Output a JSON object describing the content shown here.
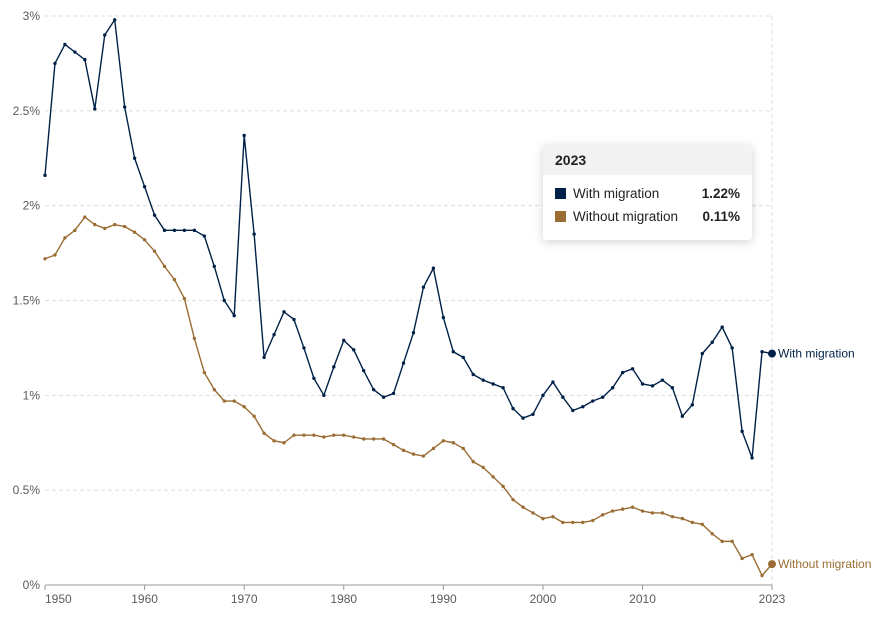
{
  "chart_data": {
    "type": "line",
    "x": [
      1950,
      1951,
      1952,
      1953,
      1954,
      1955,
      1956,
      1957,
      1958,
      1959,
      1960,
      1961,
      1962,
      1963,
      1964,
      1965,
      1966,
      1967,
      1968,
      1969,
      1970,
      1971,
      1972,
      1973,
      1974,
      1975,
      1976,
      1977,
      1978,
      1979,
      1980,
      1981,
      1982,
      1983,
      1984,
      1985,
      1986,
      1987,
      1988,
      1989,
      1990,
      1991,
      1992,
      1993,
      1994,
      1995,
      1996,
      1997,
      1998,
      1999,
      2000,
      2001,
      2002,
      2003,
      2004,
      2005,
      2006,
      2007,
      2008,
      2009,
      2010,
      2011,
      2012,
      2013,
      2014,
      2015,
      2016,
      2017,
      2018,
      2019,
      2020,
      2021,
      2022,
      2023
    ],
    "series": [
      {
        "name": "With migration",
        "color": "#002147",
        "values": [
          2.16,
          2.75,
          2.85,
          2.81,
          2.77,
          2.51,
          2.9,
          2.98,
          2.52,
          2.25,
          2.1,
          1.95,
          1.87,
          1.87,
          1.87,
          1.87,
          1.84,
          1.68,
          1.5,
          1.42,
          2.37,
          1.85,
          1.2,
          1.32,
          1.44,
          1.4,
          1.25,
          1.09,
          1.0,
          1.15,
          1.29,
          1.24,
          1.13,
          1.03,
          0.99,
          1.01,
          1.17,
          1.33,
          1.57,
          1.67,
          1.41,
          1.23,
          1.2,
          1.11,
          1.08,
          1.06,
          1.04,
          0.93,
          0.88,
          0.9,
          1.0,
          1.07,
          0.99,
          0.92,
          0.94,
          0.97,
          0.99,
          1.04,
          1.12,
          1.14,
          1.06,
          1.05,
          1.08,
          1.04,
          0.89,
          0.95,
          1.22,
          1.28,
          1.36,
          1.25,
          0.81,
          0.67,
          1.23,
          1.22
        ]
      },
      {
        "name": "Without migration",
        "color": "#9a6d34",
        "values": [
          1.72,
          1.74,
          1.83,
          1.87,
          1.94,
          1.9,
          1.88,
          1.9,
          1.89,
          1.86,
          1.82,
          1.76,
          1.68,
          1.61,
          1.51,
          1.3,
          1.12,
          1.03,
          0.97,
          0.97,
          0.94,
          0.89,
          0.8,
          0.76,
          0.75,
          0.79,
          0.79,
          0.79,
          0.78,
          0.79,
          0.79,
          0.78,
          0.77,
          0.77,
          0.77,
          0.74,
          0.71,
          0.69,
          0.68,
          0.72,
          0.76,
          0.75,
          0.72,
          0.65,
          0.62,
          0.57,
          0.52,
          0.45,
          0.41,
          0.38,
          0.35,
          0.36,
          0.33,
          0.33,
          0.33,
          0.34,
          0.37,
          0.39,
          0.4,
          0.41,
          0.39,
          0.38,
          0.38,
          0.36,
          0.35,
          0.33,
          0.32,
          0.27,
          0.23,
          0.23,
          0.14,
          0.16,
          0.05,
          0.11
        ]
      }
    ],
    "y_ticks": [
      0,
      0.5,
      1,
      1.5,
      2,
      2.5,
      3
    ],
    "y_tick_labels": [
      "0%",
      "0.5%",
      "1%",
      "1.5%",
      "2%",
      "2.5%",
      "3%"
    ],
    "x_ticks": [
      1950,
      1960,
      1970,
      1980,
      1990,
      2000,
      2010,
      2023
    ],
    "x_tick_labels": [
      "1950",
      "1960",
      "1970",
      "1980",
      "1990",
      "2000",
      "2010",
      "2023"
    ],
    "ylim": [
      0,
      3
    ],
    "xlim": [
      1950,
      2023
    ],
    "grid": "horizontal dashed",
    "line_labels": [
      "With migration",
      "Without migration"
    ],
    "title": "",
    "xlabel": "",
    "ylabel": ""
  },
  "tooltip": {
    "year": "2023",
    "rows": [
      {
        "name": "With migration",
        "value": "1.22%",
        "color": "#002147"
      },
      {
        "name": "Without migration",
        "value": "0.11%",
        "color": "#9a6d34"
      }
    ]
  }
}
